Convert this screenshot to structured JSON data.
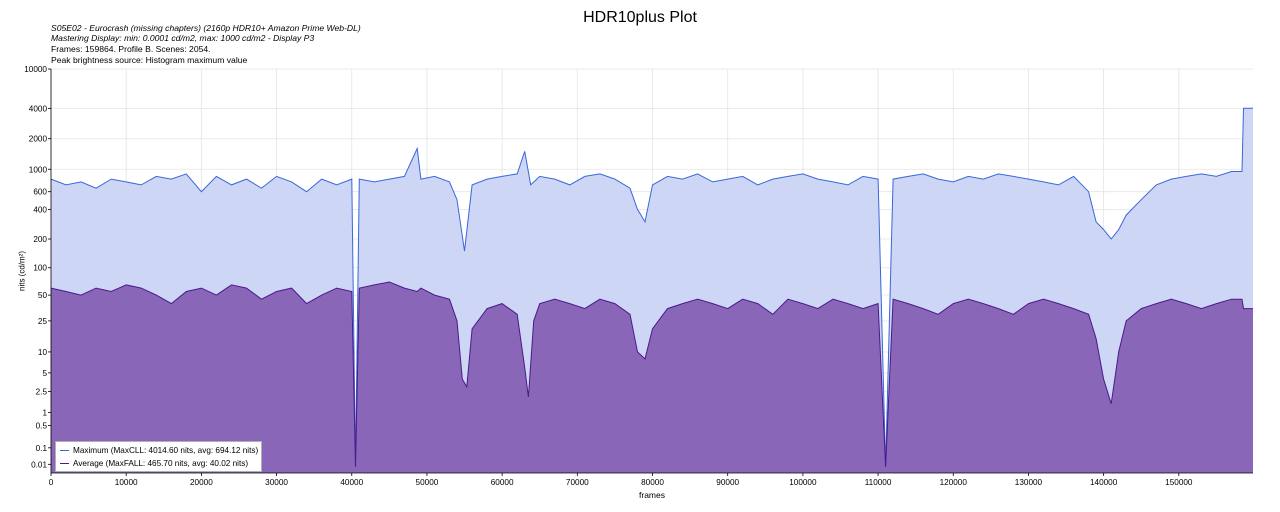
{
  "title": "HDR10plus Plot",
  "info": {
    "line1": "S05E02 - Eurocrash (missing chapters) (2160p HDR10+ Amazon Prime Web-DL)",
    "line2": "Mastering Display: min: 0.0001 cd/m2, max: 1000 cd/m2 - Display P3",
    "line3": "Frames: 159864. Profile B. Scenes: 2054.",
    "line4": "Peak brightness source: Histogram maximum value"
  },
  "colors": {
    "max_line": "#3b67d9",
    "max_fill": "#cdd6f4",
    "avg_line": "#4b1a8c",
    "avg_fill": "#8a66b8",
    "grid": "#e4e4e4"
  },
  "legend": {
    "max_label": "Maximum (MaxCLL: 4014.60 nits, avg: 694.12 nits)",
    "avg_label": "Average (MaxFALL: 465.70 nits, avg: 40.02 nits)"
  },
  "chart_data": {
    "type": "area",
    "title": "HDR10plus Plot",
    "xlabel": "frames",
    "ylabel": "nits (cd/m²)",
    "xlim": [
      0,
      159864
    ],
    "ylim": [
      0.005,
      10000
    ],
    "y_scale": "pq",
    "grid": true,
    "legend_position": "bottom-left",
    "x_ticks": [
      "0",
      "10000",
      "20000",
      "30000",
      "40000",
      "50000",
      "60000",
      "70000",
      "80000",
      "90000",
      "100000",
      "110000",
      "120000",
      "130000",
      "140000",
      "150000"
    ],
    "y_ticks": [
      "0.01",
      "0.1",
      "0.5",
      "1",
      "2.5",
      "5",
      "10",
      "25",
      "50",
      "100",
      "200",
      "400",
      "600",
      "1000",
      "2000",
      "4000",
      "10000"
    ],
    "series": [
      {
        "name": "Maximum (MaxCLL: 4014.60 nits, avg: 694.12 nits)",
        "x": [
          0,
          2000,
          4000,
          6000,
          8000,
          10000,
          12000,
          14000,
          16000,
          18000,
          20000,
          22000,
          24000,
          26000,
          28000,
          30000,
          32000,
          34000,
          36000,
          38000,
          40000,
          40500,
          41000,
          43000,
          45000,
          47000,
          48700,
          49200,
          51000,
          53000,
          54000,
          55000,
          56000,
          58000,
          60000,
          62000,
          63000,
          63800,
          65000,
          67000,
          69000,
          71000,
          73000,
          75000,
          77000,
          78000,
          79000,
          80000,
          82000,
          84000,
          86000,
          88000,
          90000,
          92000,
          94000,
          96000,
          98000,
          100000,
          102000,
          104000,
          106000,
          108000,
          110000,
          111000,
          112000,
          114000,
          116000,
          118000,
          120000,
          122000,
          124000,
          126000,
          128000,
          130000,
          132000,
          134000,
          136000,
          138000,
          139000,
          140000,
          141000,
          142000,
          143000,
          145000,
          147000,
          149000,
          151000,
          153000,
          155000,
          157000,
          158400,
          158600,
          159864
        ],
        "y": [
          800,
          700,
          750,
          650,
          800,
          750,
          700,
          850,
          800,
          900,
          600,
          850,
          700,
          800,
          650,
          850,
          750,
          600,
          800,
          700,
          800,
          0.005,
          800,
          750,
          800,
          850,
          1600,
          800,
          850,
          750,
          500,
          150,
          700,
          800,
          850,
          900,
          1500,
          700,
          850,
          800,
          700,
          850,
          900,
          800,
          650,
          400,
          300,
          700,
          850,
          800,
          900,
          750,
          800,
          850,
          700,
          800,
          850,
          900,
          800,
          750,
          700,
          850,
          800,
          0.005,
          800,
          850,
          900,
          800,
          750,
          850,
          800,
          900,
          850,
          800,
          750,
          700,
          850,
          600,
          300,
          250,
          200,
          250,
          350,
          500,
          700,
          800,
          850,
          900,
          850,
          950,
          950,
          4014.6,
          4014.6
        ]
      },
      {
        "name": "Average (MaxFALL: 465.70 nits, avg: 40.02 nits)",
        "x": [
          0,
          2000,
          4000,
          6000,
          8000,
          10000,
          12000,
          14000,
          16000,
          18000,
          20000,
          22000,
          24000,
          26000,
          28000,
          30000,
          32000,
          34000,
          36000,
          38000,
          40000,
          40500,
          41000,
          43000,
          45000,
          47000,
          48700,
          49200,
          51000,
          53000,
          54000,
          54700,
          55300,
          56000,
          58000,
          60000,
          62000,
          63000,
          63500,
          64200,
          65000,
          67000,
          69000,
          71000,
          73000,
          75000,
          77000,
          78000,
          79000,
          80000,
          82000,
          84000,
          86000,
          88000,
          90000,
          92000,
          94000,
          96000,
          98000,
          100000,
          102000,
          104000,
          106000,
          108000,
          110000,
          111000,
          112000,
          114000,
          116000,
          118000,
          120000,
          122000,
          124000,
          126000,
          128000,
          130000,
          132000,
          134000,
          136000,
          138000,
          139000,
          140000,
          141000,
          142000,
          143000,
          145000,
          147000,
          149000,
          151000,
          153000,
          155000,
          157000,
          158400,
          158600,
          159864
        ],
        "y": [
          60,
          55,
          50,
          60,
          55,
          65,
          60,
          50,
          40,
          55,
          60,
          50,
          65,
          60,
          45,
          55,
          60,
          40,
          50,
          60,
          55,
          0.005,
          60,
          65,
          70,
          60,
          55,
          60,
          50,
          45,
          25,
          4,
          3,
          20,
          35,
          40,
          30,
          6,
          2,
          25,
          40,
          45,
          40,
          35,
          45,
          40,
          30,
          10,
          8,
          20,
          35,
          40,
          45,
          40,
          35,
          45,
          40,
          30,
          45,
          40,
          35,
          45,
          40,
          35,
          40,
          0.005,
          45,
          40,
          35,
          30,
          40,
          45,
          40,
          35,
          30,
          40,
          45,
          40,
          35,
          30,
          15,
          4,
          1.5,
          10,
          25,
          35,
          40,
          45,
          40,
          35,
          40,
          45,
          45,
          35,
          35
        ]
      }
    ]
  }
}
